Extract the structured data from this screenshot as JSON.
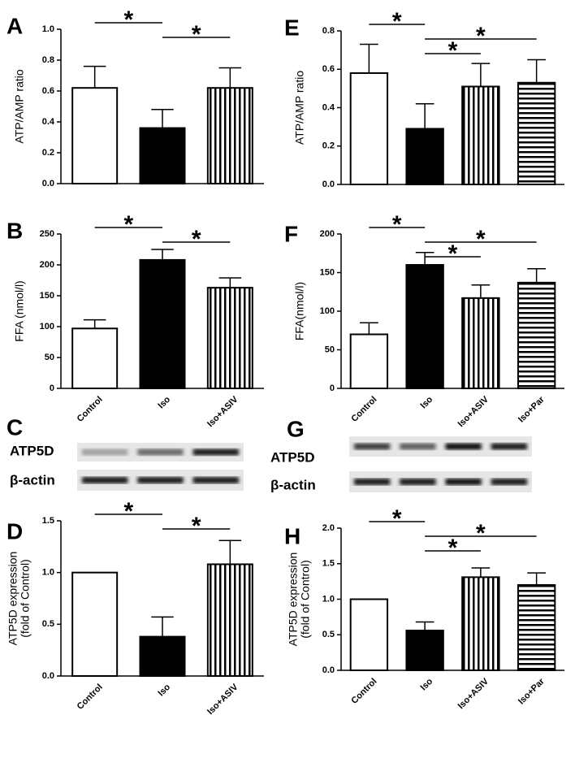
{
  "chart_data": [
    {
      "type": "bar",
      "panel": "A",
      "ylabel": [
        "ATP/AMP ratio"
      ],
      "categories": [
        null,
        null,
        null
      ],
      "values": [
        0.62,
        0.36,
        0.62
      ],
      "errors": [
        0.14,
        0.12,
        0.13
      ],
      "fills": [
        "white",
        "black",
        "vstripe"
      ],
      "ylim": [
        0,
        1.0
      ],
      "yticks": [
        {
          "value": 0,
          "label": "0.0"
        },
        0.2,
        0.4,
        0.6,
        0.8,
        {
          "value": 1.0,
          "label": "1.0"
        }
      ],
      "annotations": [
        {
          "text": "*",
          "between": [
            0,
            1
          ]
        },
        {
          "text": "*",
          "between": [
            1,
            2
          ]
        }
      ]
    },
    {
      "type": "bar",
      "panel": "B",
      "ylabel": [
        "FFA (nmol/l)"
      ],
      "categories": [
        "Control",
        "Iso",
        "Iso+ASIV"
      ],
      "values": [
        97,
        208,
        163
      ],
      "errors": [
        14,
        17,
        16
      ],
      "fills": [
        "white",
        "black",
        "vstripe"
      ],
      "ylim": [
        0,
        250
      ],
      "yticks": [
        0,
        50,
        100,
        150,
        200,
        250
      ],
      "annotations": [
        {
          "text": "*",
          "between": [
            0,
            1
          ]
        },
        {
          "text": "*",
          "between": [
            1,
            2
          ]
        }
      ]
    },
    {
      "type": "bar",
      "panel": "D",
      "ylabel": [
        "ATP5D expression",
        "(fold of Control)"
      ],
      "categories": [
        "Control",
        "Iso",
        "Iso+ASIV"
      ],
      "values": [
        1.0,
        0.38,
        1.08
      ],
      "errors": [
        0,
        0.19,
        0.23
      ],
      "fills": [
        "white",
        "black",
        "vstripe"
      ],
      "ylim": [
        0,
        1.5
      ],
      "yticks": [
        {
          "value": 0,
          "label": "0.0"
        },
        0.5,
        {
          "value": 1.0,
          "label": "1.0"
        },
        1.5
      ],
      "annotations": [
        {
          "text": "*",
          "between": [
            0,
            1
          ]
        },
        {
          "text": "*",
          "between": [
            1,
            2
          ]
        }
      ]
    },
    {
      "type": "bar",
      "panel": "E",
      "ylabel": [
        "ATP/AMP ratio"
      ],
      "categories": [
        null,
        null,
        null,
        null
      ],
      "values": [
        0.58,
        0.29,
        0.51,
        0.53
      ],
      "errors": [
        0.15,
        0.13,
        0.12,
        0.12
      ],
      "fills": [
        "white",
        "black",
        "vstripe",
        "hstripe"
      ],
      "ylim": [
        0,
        0.8
      ],
      "yticks": [
        {
          "value": 0,
          "label": "0.0"
        },
        0.2,
        0.4,
        0.6,
        0.8
      ],
      "annotations": [
        {
          "text": "*",
          "between": [
            0,
            1
          ]
        },
        {
          "text": "*",
          "between": [
            1,
            3
          ]
        },
        {
          "text": "*",
          "between": [
            1,
            2
          ]
        }
      ]
    },
    {
      "type": "bar",
      "panel": "F",
      "ylabel": [
        "FFA(nmol/l)"
      ],
      "categories": [
        "Control",
        "Iso",
        "Iso+ASIV",
        "Iso+Par"
      ],
      "values": [
        70,
        160,
        117,
        137
      ],
      "errors": [
        15,
        16,
        17,
        18
      ],
      "fills": [
        "white",
        "black",
        "vstripe",
        "hstripe"
      ],
      "ylim": [
        0,
        200
      ],
      "yticks": [
        0,
        50,
        100,
        150,
        200
      ],
      "annotations": [
        {
          "text": "*",
          "between": [
            0,
            1
          ]
        },
        {
          "text": "*",
          "between": [
            1,
            3
          ]
        },
        {
          "text": "*",
          "between": [
            1,
            2
          ]
        }
      ]
    },
    {
      "type": "bar",
      "panel": "H",
      "ylabel": [
        "ATP5D expression",
        "(fold of Control)"
      ],
      "categories": [
        "Control",
        "Iso",
        "Iso+ASIV",
        "Iso+Par"
      ],
      "values": [
        1.0,
        0.56,
        1.31,
        1.2
      ],
      "errors": [
        0,
        0.12,
        0.13,
        0.17
      ],
      "fills": [
        "white",
        "black",
        "vstripe",
        "hstripe"
      ],
      "ylim": [
        0,
        2.0
      ],
      "yticks": [
        {
          "value": 0,
          "label": "0.0"
        },
        0.5,
        {
          "value": 1.0,
          "label": "1.0"
        },
        1.5,
        {
          "value": 2.0,
          "label": "2.0"
        }
      ],
      "annotations": [
        {
          "text": "*",
          "between": [
            0,
            1
          ]
        },
        {
          "text": "*",
          "between": [
            1,
            3
          ]
        },
        {
          "text": "*",
          "between": [
            1,
            2
          ]
        }
      ]
    }
  ],
  "blots": [
    {
      "panel": "C",
      "labels": [
        "ATP5D",
        "β-actin"
      ]
    },
    {
      "panel": "G",
      "labels": [
        "ATP5D",
        "β-actin"
      ]
    }
  ]
}
